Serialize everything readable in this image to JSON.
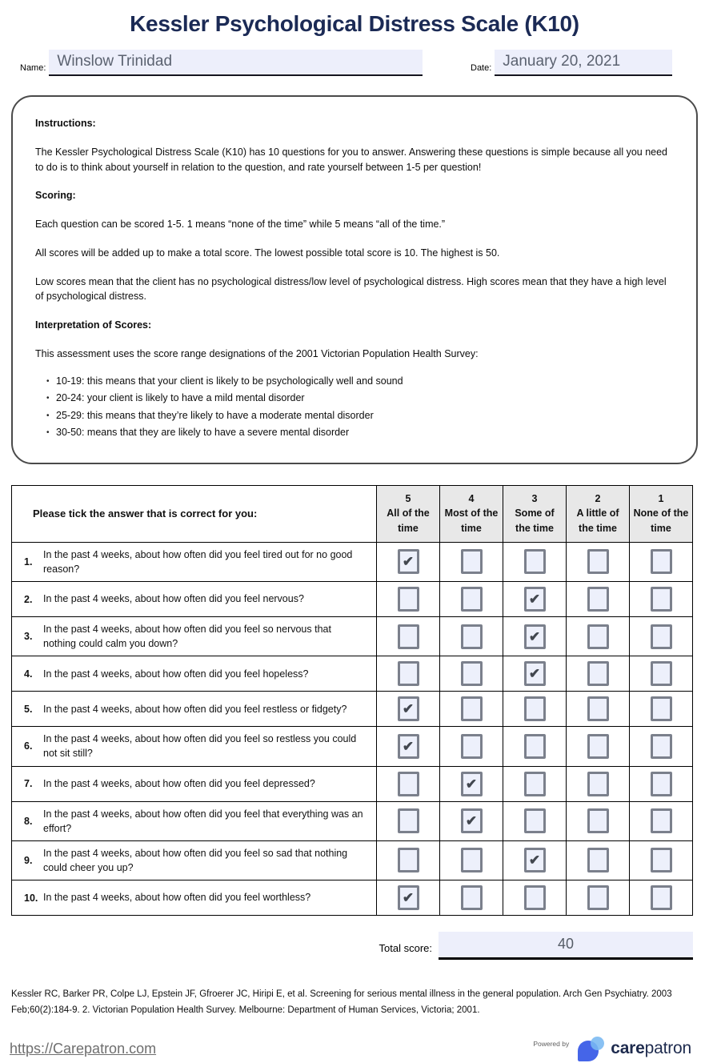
{
  "title": "Kessler Psychological Distress Scale (K10)",
  "fields": {
    "name_label": "Name:",
    "name_value": "Winslow Trinidad",
    "date_label": "Date:",
    "date_value": "January 20, 2021"
  },
  "instructions": {
    "heading": "Instructions:",
    "intro": "The Kessler Psychological Distress Scale (K10) has 10 questions for you to answer. Answering these questions is simple because all you need to do is to think about yourself in relation to the question, and rate yourself between 1-5 per question!",
    "scoring_heading": "Scoring:",
    "scoring_p1": "Each question can be scored 1-5. 1 means “none of the time” while 5 means “all of the time.”",
    "scoring_p2": "All scores will be added up to make a total score. The lowest possible total score is 10. The highest is 50.",
    "scoring_p3": "Low scores mean that the client has no psychological distress/low level of psychological distress. High scores mean that they have a high level of psychological distress.",
    "interpretation_heading": "Interpretation of Scores:",
    "interpretation_intro": "This assessment uses the score range designations of the 2001 Victorian Population Health Survey:",
    "bullets": [
      "10-19: this means that your client is likely to be psychologically well and sound",
      "20-24: your client is likely to have a mild mental disorder",
      "25-29: this means that they’re likely to have a moderate mental disorder",
      "30-50: means that they are likely to have a severe mental disorder"
    ]
  },
  "table": {
    "question_header": "Please tick the answer that is correct for you:",
    "check_glyph": "✔",
    "columns": [
      {
        "score": "5",
        "label": "All of the time"
      },
      {
        "score": "4",
        "label": "Most of the time"
      },
      {
        "score": "3",
        "label": "Some of the time"
      },
      {
        "score": "2",
        "label": "A little of the time"
      },
      {
        "score": "1",
        "label": "None of the time"
      }
    ],
    "rows": [
      {
        "num": "1.",
        "question": "In the past 4 weeks, about how often did you feel tired out for no good reason?",
        "checked": 0
      },
      {
        "num": "2.",
        "question": "In the past 4 weeks, about how often did you feel nervous?",
        "checked": 2
      },
      {
        "num": "3.",
        "question": "In the past 4 weeks, about how often did you feel so nervous that nothing could calm you down?",
        "checked": 2
      },
      {
        "num": "4.",
        "question": "In the past 4 weeks, about how often did you feel hopeless?",
        "checked": 2
      },
      {
        "num": "5.",
        "question": "In the past 4 weeks, about how often did you feel restless or fidgety?",
        "checked": 0
      },
      {
        "num": "6.",
        "question": "In the past 4 weeks, about how often did you feel so restless you could not sit still?",
        "checked": 0
      },
      {
        "num": "7.",
        "question": "In the past 4 weeks, about how often did you feel depressed?",
        "checked": 1
      },
      {
        "num": "8.",
        "question": "In the past 4 weeks, about how often did you feel that everything was an effort?",
        "checked": 1
      },
      {
        "num": "9.",
        "question": "In the past 4 weeks, about how often did you feel so sad that nothing could cheer you up?",
        "checked": 2
      },
      {
        "num": "10.",
        "question": "In the past 4 weeks, about how often did you feel worthless?",
        "checked": 0
      }
    ]
  },
  "total": {
    "label": "Total score:",
    "value": "40"
  },
  "footer": {
    "citation": "Kessler RC, Barker PR, Colpe LJ, Epstein JF, Gfroerer JC, Hiripi E, et al. Screening for serious mental illness in the general population. Arch Gen Psychiatry. 2003 Feb;60(2):184-9. 2. Victorian Population Health Survey. Melbourne: Department of Human Services, Victoria; 2001.",
    "link": "https://Carepatron.com",
    "powered_by": "Powered by",
    "logo_bold": "care",
    "logo_rest": "patron"
  },
  "colors": {
    "title_navy": "#1b2a55",
    "field_background": "#edeffb",
    "header_cell_gray": "#e8e8e8",
    "checkbox_border": "#7b808c",
    "check_mark": "#42474f",
    "logo_blue": "#4565e8",
    "logo_light_blue": "#79b8f1",
    "wordmark_navy": "#1e2b4e",
    "link_gray": "#6e6e6e"
  }
}
